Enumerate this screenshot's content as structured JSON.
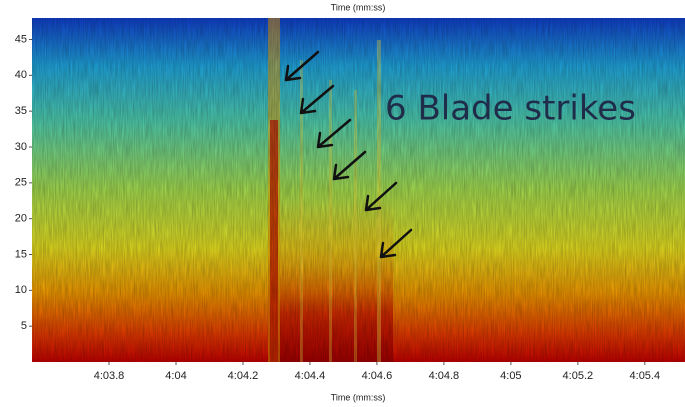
{
  "chart_data": {
    "type": "spectrogram",
    "title": "Time (mm:ss)",
    "x_label": "Time (mm:ss)",
    "annotation": "6 Blade strikes",
    "xlim": [
      243.57,
      245.52
    ],
    "xticks": [
      {
        "value": 243.8,
        "label": "4:03.8"
      },
      {
        "value": 244.0,
        "label": "4:04"
      },
      {
        "value": 244.2,
        "label": "4:04.2"
      },
      {
        "value": 244.4,
        "label": "4:04.4"
      },
      {
        "value": 244.6,
        "label": "4:04.6"
      },
      {
        "value": 244.8,
        "label": "4:04.8"
      },
      {
        "value": 245.0,
        "label": "4:05"
      },
      {
        "value": 245.2,
        "label": "4:05.2"
      },
      {
        "value": 245.4,
        "label": "4:05.4"
      }
    ],
    "ylim": [
      0,
      48
    ],
    "yticks": [
      5,
      10,
      15,
      20,
      25,
      30,
      35,
      40,
      45
    ]
  }
}
